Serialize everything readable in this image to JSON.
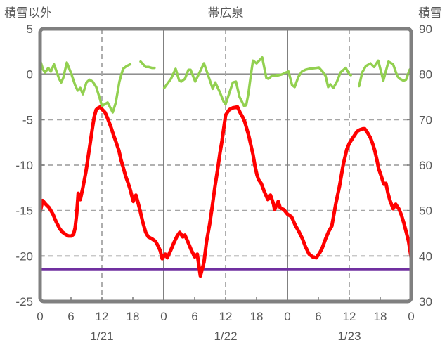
{
  "chart_data": {
    "type": "line",
    "title": "帯広泉",
    "left_axis": {
      "title": "積雪以外",
      "min": -25,
      "max": 5,
      "ticks": [
        5,
        0,
        -5,
        -10,
        -15,
        -20,
        -25
      ]
    },
    "right_axis": {
      "title": "積雪",
      "min": 30,
      "max": 90,
      "ticks": [
        90,
        80,
        70,
        60,
        50,
        40,
        30
      ]
    },
    "x_axis": {
      "total_hours": 72,
      "ticks": [
        {
          "hour": 0,
          "label": "0"
        },
        {
          "hour": 6,
          "label": "6"
        },
        {
          "hour": 12,
          "label": "12"
        },
        {
          "hour": 18,
          "label": "18"
        },
        {
          "hour": 24,
          "label": "0"
        },
        {
          "hour": 30,
          "label": "6"
        },
        {
          "hour": 36,
          "label": "12"
        },
        {
          "hour": 42,
          "label": "18"
        },
        {
          "hour": 48,
          "label": "0"
        },
        {
          "hour": 54,
          "label": "6"
        },
        {
          "hour": 60,
          "label": "12"
        },
        {
          "hour": 66,
          "label": "18"
        },
        {
          "hour": 72,
          "label": "0"
        }
      ],
      "date_labels": [
        {
          "hour": 12,
          "label": "1/21"
        },
        {
          "hour": 36,
          "label": "1/22"
        },
        {
          "hour": 60,
          "label": "1/23"
        }
      ]
    },
    "gridlines": {
      "horizontal_left_values": [
        {
          "value": 0,
          "style": "solid"
        },
        {
          "value": -5,
          "style": "dashed"
        },
        {
          "value": -10,
          "style": "dashed"
        },
        {
          "value": -15,
          "style": "dashed"
        },
        {
          "value": -20,
          "style": "dashed"
        }
      ],
      "vertical_hours": [
        {
          "hour": 12,
          "style": "dashed"
        },
        {
          "hour": 24,
          "style": "solid"
        },
        {
          "hour": 36,
          "style": "dashed"
        },
        {
          "hour": 48,
          "style": "solid"
        },
        {
          "hour": 60,
          "style": "dashed"
        }
      ]
    },
    "colors": {
      "red": "#FF0000",
      "green": "#92D050",
      "purple": "#7030A0",
      "grid_solid": "#808080",
      "grid_dashed": "#A6A6A6",
      "border": "#808080",
      "text": "#595959",
      "background": "#FFFFFF"
    },
    "series": [
      {
        "id": "purple-line",
        "axis": "right",
        "color_key": "purple",
        "width": 4,
        "segments": [
          [
            [
              0,
              37
            ],
            [
              72,
              37
            ]
          ]
        ]
      },
      {
        "id": "red-line",
        "axis": "left",
        "color_key": "red",
        "width": 5,
        "segments": [
          [
            [
              0,
              -15.2
            ],
            [
              0.5,
              -13.9
            ],
            [
              1.1,
              -14.3
            ],
            [
              1.8,
              -14.7
            ],
            [
              2.5,
              -15.4
            ],
            [
              3.1,
              -16.2
            ],
            [
              3.8,
              -17.0
            ],
            [
              4.4,
              -17.4
            ],
            [
              4.9,
              -17.6
            ],
            [
              5.5,
              -17.8
            ],
            [
              6.1,
              -17.8
            ],
            [
              6.5,
              -17.6
            ],
            [
              6.8,
              -16.9
            ],
            [
              7.1,
              -15.4
            ],
            [
              7.4,
              -13.1
            ],
            [
              7.8,
              -13.8
            ],
            [
              8.3,
              -12.5
            ],
            [
              8.9,
              -10.7
            ],
            [
              9.3,
              -9.2
            ],
            [
              9.7,
              -7.7
            ],
            [
              10.1,
              -6.1
            ],
            [
              10.5,
              -4.7
            ],
            [
              10.9,
              -3.9
            ],
            [
              11.3,
              -3.7
            ],
            [
              11.7,
              -3.6
            ],
            [
              12.1,
              -3.9
            ],
            [
              12.6,
              -4.2
            ],
            [
              13,
              -4.7
            ],
            [
              13.4,
              -5.3
            ],
            [
              13.8,
              -5.9
            ],
            [
              14.2,
              -6.6
            ],
            [
              14.7,
              -7.4
            ],
            [
              15.3,
              -8.4
            ],
            [
              15.7,
              -9.4
            ],
            [
              16.1,
              -10.2
            ],
            [
              16.6,
              -11.2
            ],
            [
              17.1,
              -12
            ],
            [
              17.5,
              -12.7
            ],
            [
              17.9,
              -13.6
            ],
            [
              18.1,
              -14
            ],
            [
              18.6,
              -13.3
            ],
            [
              19,
              -14.1
            ],
            [
              19.4,
              -15
            ],
            [
              19.9,
              -16.2
            ],
            [
              20.5,
              -17.4
            ],
            [
              21,
              -17.9
            ],
            [
              21.7,
              -18.1
            ],
            [
              22.4,
              -18.4
            ],
            [
              22.9,
              -18.9
            ],
            [
              23.3,
              -19.4
            ],
            [
              23.7,
              -20.3
            ],
            [
              24.3,
              -19.8
            ],
            [
              24.7,
              -20.2
            ],
            [
              25.4,
              -19.3
            ],
            [
              26,
              -18.5
            ],
            [
              26.6,
              -17.8
            ],
            [
              27.1,
              -17.4
            ],
            [
              27.7,
              -17.9
            ],
            [
              28.1,
              -17.7
            ],
            [
              28.8,
              -18.6
            ],
            [
              29.3,
              -19.3
            ],
            [
              30,
              -20.1
            ],
            [
              30.5,
              -19.8
            ],
            [
              31.1,
              -22.2
            ],
            [
              31.8,
              -20.7
            ],
            [
              32.3,
              -18.4
            ],
            [
              32.9,
              -16.5
            ],
            [
              33.4,
              -14.6
            ],
            [
              33.9,
              -12.5
            ],
            [
              34.5,
              -10.3
            ],
            [
              34.9,
              -8.7
            ],
            [
              35.3,
              -7.3
            ],
            [
              36,
              -4.5
            ],
            [
              36.7,
              -3.9
            ],
            [
              37.4,
              -3.7
            ],
            [
              38.3,
              -3.6
            ],
            [
              38.8,
              -4.2
            ],
            [
              39.3,
              -4.7
            ],
            [
              39.7,
              -5.2
            ],
            [
              40.1,
              -6
            ],
            [
              40.5,
              -6.8
            ],
            [
              40.9,
              -7.8
            ],
            [
              41.3,
              -8.8
            ],
            [
              41.7,
              -10.1
            ],
            [
              42.1,
              -11.1
            ],
            [
              42.4,
              -11.6
            ],
            [
              42.9,
              -12
            ],
            [
              43.5,
              -12.9
            ],
            [
              44.2,
              -13.8
            ],
            [
              44.7,
              -13.3
            ],
            [
              45.3,
              -14.3
            ],
            [
              45.5,
              -14.9
            ],
            [
              46.2,
              -14
            ],
            [
              46.6,
              -14.7
            ],
            [
              47.3,
              -14.9
            ],
            [
              48,
              -15.4
            ],
            [
              48.8,
              -15.7
            ],
            [
              49.5,
              -16.6
            ],
            [
              50.2,
              -17.3
            ],
            [
              50.9,
              -18.1
            ],
            [
              51.5,
              -19
            ],
            [
              52.2,
              -19.8
            ],
            [
              52.9,
              -20.1
            ],
            [
              53.6,
              -20.2
            ],
            [
              54.3,
              -19.6
            ],
            [
              54.7,
              -19.2
            ],
            [
              55.4,
              -18.1
            ],
            [
              56,
              -17.3
            ],
            [
              56.6,
              -16.7
            ],
            [
              57.4,
              -14.2
            ],
            [
              58.1,
              -12.3
            ],
            [
              58.8,
              -10
            ],
            [
              59.5,
              -8.3
            ],
            [
              60,
              -7.6
            ],
            [
              60.8,
              -6.9
            ],
            [
              61.5,
              -6.3
            ],
            [
              62.1,
              -6.1
            ],
            [
              62.6,
              -6
            ],
            [
              63,
              -6
            ],
            [
              63.6,
              -6.5
            ],
            [
              64.1,
              -7
            ],
            [
              64.5,
              -7.6
            ],
            [
              64.9,
              -8.3
            ],
            [
              65.3,
              -9.3
            ],
            [
              65.7,
              -10.4
            ],
            [
              66.3,
              -11.4
            ],
            [
              66.7,
              -12.1
            ],
            [
              67.1,
              -12
            ],
            [
              67.5,
              -13.1
            ],
            [
              67.9,
              -13.9
            ],
            [
              68.5,
              -14.8
            ],
            [
              69,
              -14.3
            ],
            [
              69.6,
              -14.8
            ],
            [
              70.1,
              -15.5
            ],
            [
              70.6,
              -16.4
            ],
            [
              71.1,
              -17.5
            ],
            [
              71.5,
              -18.4
            ],
            [
              72,
              -20.2
            ]
          ]
        ]
      },
      {
        "id": "green-line",
        "axis": "left",
        "color_key": "green",
        "width": 3.5,
        "segments": [
          [
            [
              0,
              1.55
            ],
            [
              0.6,
              0.5
            ],
            [
              1,
              0.2
            ],
            [
              1.6,
              0.7
            ],
            [
              2.1,
              0.3
            ],
            [
              2.7,
              1.1
            ],
            [
              3.7,
              -0.5
            ],
            [
              4.1,
              -0.9
            ],
            [
              4.5,
              -0.4
            ],
            [
              5.2,
              1.3
            ],
            [
              6.1,
              0
            ],
            [
              6.8,
              -1.2
            ],
            [
              7.3,
              -1.8
            ],
            [
              7.8,
              -1.5
            ],
            [
              8.3,
              -2.2
            ],
            [
              9,
              -0.9
            ],
            [
              9.6,
              -0.6
            ],
            [
              10.2,
              -0.8
            ],
            [
              10.9,
              -1.4
            ],
            [
              11.6,
              -2.7
            ],
            [
              12,
              -3.5
            ],
            [
              13.1,
              -3.1
            ],
            [
              14.1,
              -4.2
            ],
            [
              14.7,
              -3.1
            ],
            [
              15.4,
              -0.8
            ],
            [
              16.1,
              0.6
            ],
            [
              16.8,
              0.9
            ],
            [
              17.5,
              1.1
            ]
          ],
          [
            [
              19.5,
              1.4
            ],
            [
              20.5,
              0.8
            ],
            [
              21.1,
              0.8
            ],
            [
              21.7,
              0.7
            ],
            [
              22.2,
              0.7
            ]
          ],
          [
            [
              24.1,
              -1.5
            ],
            [
              25.4,
              -0.5
            ],
            [
              26.3,
              0.6
            ],
            [
              27,
              -0.7
            ],
            [
              27.4,
              -0.8
            ],
            [
              28.1,
              -0.5
            ],
            [
              28.8,
              0.5
            ],
            [
              29.2,
              0.5
            ],
            [
              30.1,
              -0.8
            ],
            [
              31.8,
              1.2
            ],
            [
              32.9,
              -0.6
            ],
            [
              33.5,
              -1.6
            ],
            [
              34,
              -0.9
            ],
            [
              34.9,
              -2
            ],
            [
              35.6,
              -3
            ],
            [
              36,
              -3.3
            ],
            [
              37.4,
              -0.9
            ],
            [
              38,
              -0.8
            ],
            [
              38.7,
              -2.5
            ],
            [
              39.6,
              -3.5
            ],
            [
              40,
              -3.4
            ],
            [
              40.4,
              -2.2
            ],
            [
              40.8,
              -0.5
            ],
            [
              41.3,
              1.5
            ],
            [
              42,
              1.2
            ],
            [
              43.1,
              1.85
            ],
            [
              43.9,
              -0.4
            ],
            [
              44.3,
              -0.5
            ],
            [
              44.9,
              -0.2
            ],
            [
              45.6,
              -0.2
            ],
            [
              46.3,
              -0.1
            ],
            [
              47,
              0
            ],
            [
              47.7,
              0.2
            ],
            [
              48.2,
              0.3
            ],
            [
              48.9,
              -1.2
            ],
            [
              49.4,
              -1.4
            ],
            [
              50.1,
              -0.3
            ],
            [
              50.8,
              0.3
            ],
            [
              51.5,
              0.5
            ],
            [
              52.2,
              0.6
            ],
            [
              52.9,
              0.65
            ],
            [
              53.6,
              0.7
            ],
            [
              54.1,
              0.75
            ],
            [
              54.8,
              0.3
            ],
            [
              55.4,
              -0.2
            ],
            [
              55.9,
              -1.4
            ],
            [
              56.3,
              -1.1
            ],
            [
              56.9,
              -1.5
            ],
            [
              57.6,
              -0.8
            ],
            [
              58.3,
              0.2
            ],
            [
              59.3,
              0.7
            ],
            [
              60,
              0
            ],
            [
              60.3,
              -0.1
            ]
          ],
          [
            [
              61.9,
              -1.3
            ],
            [
              62.5,
              0.2
            ],
            [
              63.2,
              0.9
            ],
            [
              64.1,
              1.2
            ],
            [
              64.8,
              0.8
            ],
            [
              65.6,
              1.5
            ],
            [
              66.6,
              -0.7
            ],
            [
              67.6,
              1.4
            ],
            [
              68.5,
              1.1
            ],
            [
              69.3,
              -0.2
            ],
            [
              69.8,
              -0.5
            ],
            [
              70.5,
              -0.7
            ],
            [
              71,
              -0.6
            ],
            [
              71.7,
              0.5
            ],
            [
              72,
              0.7
            ]
          ]
        ]
      }
    ]
  }
}
